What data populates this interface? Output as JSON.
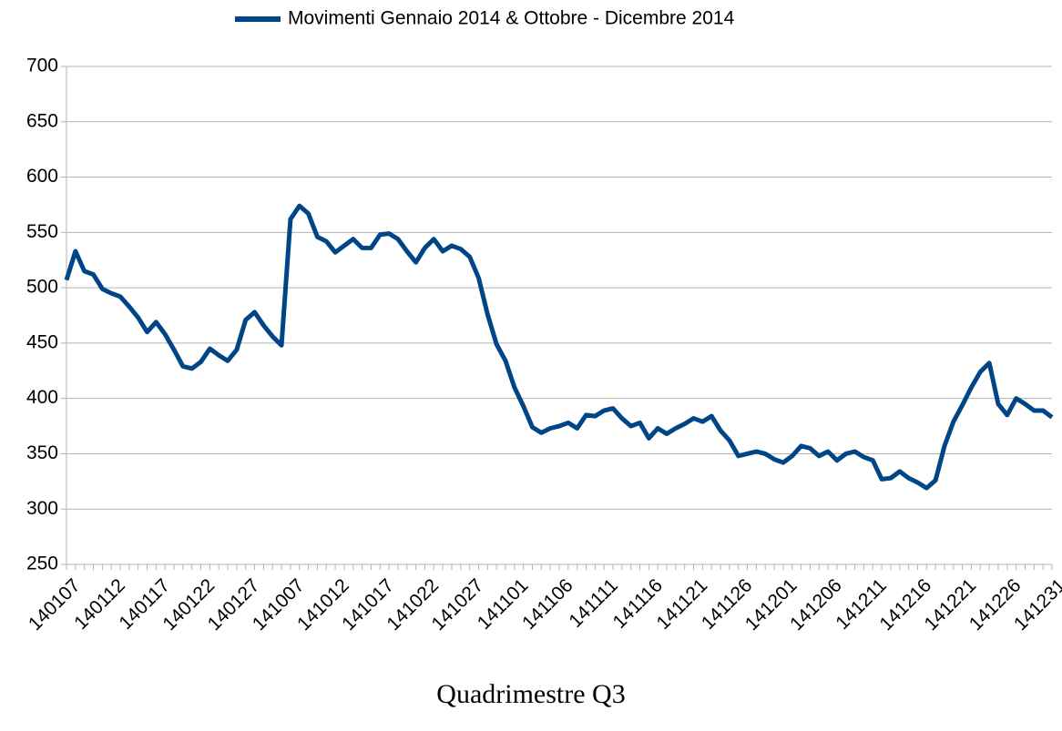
{
  "chart_data": {
    "type": "line",
    "legend": "top",
    "grid": true,
    "xlabel": "Quadrimestre Q3",
    "categories": [
      "140107",
      null,
      null,
      null,
      null,
      "140112",
      null,
      null,
      null,
      null,
      "140117",
      null,
      null,
      null,
      null,
      "140122",
      null,
      null,
      null,
      null,
      "140127",
      null,
      null,
      null,
      null,
      "141007",
      null,
      null,
      null,
      null,
      "141012",
      null,
      null,
      null,
      null,
      "141017",
      null,
      null,
      null,
      null,
      "141022",
      null,
      null,
      null,
      null,
      "141027",
      null,
      null,
      null,
      null,
      "141101",
      null,
      null,
      null,
      null,
      "141106",
      null,
      null,
      null,
      null,
      "141111",
      null,
      null,
      null,
      null,
      "141116",
      null,
      null,
      null,
      null,
      "141121",
      null,
      null,
      null,
      null,
      "141126",
      null,
      null,
      null,
      null,
      "141201",
      null,
      null,
      null,
      null,
      "141206",
      null,
      null,
      null,
      null,
      "141211",
      null,
      null,
      null,
      null,
      "141216",
      null,
      null,
      null,
      null,
      "141221",
      null,
      null,
      null,
      null,
      "141226",
      null,
      null,
      null,
      null,
      "141231"
    ],
    "series": [
      {
        "name": "Movimenti Gennaio 2014 & Ottobre - Dicembre 2014",
        "color": "#004586",
        "values": [
          507,
          533,
          515,
          512,
          499,
          495,
          492,
          483,
          473,
          460,
          469,
          458,
          444,
          429,
          427,
          433,
          445,
          439,
          434,
          444,
          471,
          478,
          466,
          456,
          448,
          562,
          574,
          567,
          546,
          542,
          532,
          538,
          544,
          536,
          536,
          548,
          549,
          544,
          533,
          523,
          536,
          544,
          533,
          538,
          535,
          528,
          509,
          476,
          449,
          434,
          410,
          393,
          374,
          369,
          373,
          375,
          378,
          373,
          385,
          384,
          389,
          391,
          382,
          375,
          378,
          364,
          373,
          368,
          373,
          377,
          382,
          379,
          384,
          371,
          362,
          348,
          350,
          352,
          350,
          345,
          342,
          348,
          357,
          355,
          348,
          352,
          344,
          350,
          352,
          347,
          344,
          327,
          328,
          334,
          328,
          324,
          319,
          326,
          357,
          379,
          394,
          410,
          424,
          432,
          395,
          385,
          400,
          395,
          389,
          389,
          383
        ]
      }
    ],
    "ylim": [
      250,
      700
    ],
    "yticks": [
      250,
      300,
      350,
      400,
      450,
      500,
      550,
      600,
      650,
      700
    ]
  }
}
